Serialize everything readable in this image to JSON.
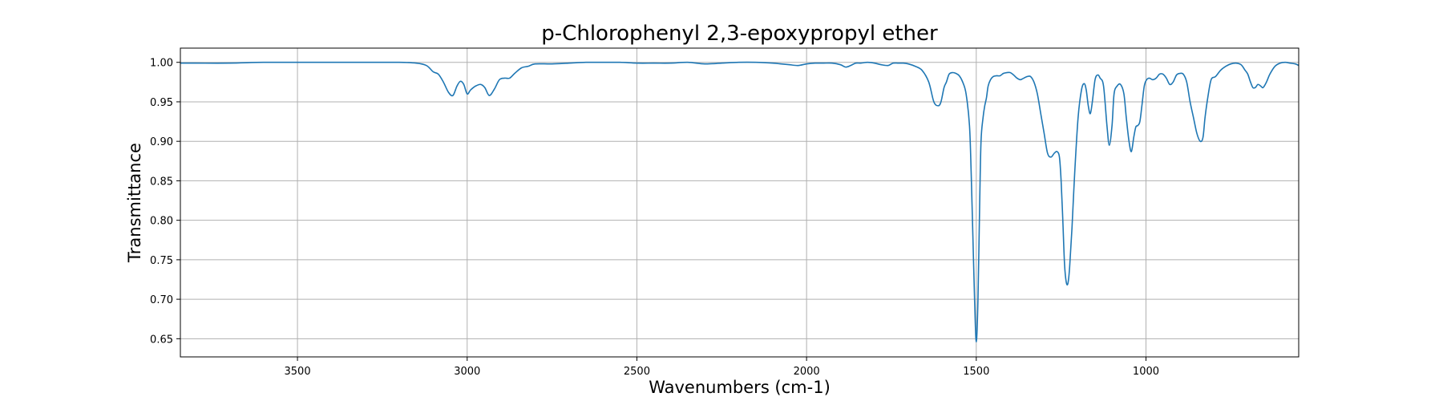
{
  "chart_data": {
    "type": "line",
    "title": "p-Chlorophenyl 2,3-epoxypropyl ether",
    "xlabel": "Wavenumbers (cm-1)",
    "ylabel": "Transmittance",
    "xlim": [
      3845,
      550
    ],
    "ylim": [
      0.627,
      1.018
    ],
    "x_reversed": true,
    "grid": true,
    "x_ticks": [
      3500,
      3000,
      2500,
      2000,
      1500,
      1000
    ],
    "x_tick_labels": [
      "3500",
      "3000",
      "2500",
      "2000",
      "1500",
      "1000"
    ],
    "y_ticks": [
      0.65,
      0.7,
      0.75,
      0.8,
      0.85,
      0.9,
      0.95,
      1.0
    ],
    "y_tick_labels": [
      "0.65",
      "0.70",
      "0.75",
      "0.80",
      "0.85",
      "0.90",
      "0.95",
      "1.00"
    ],
    "line_color": "#1f77b4",
    "series": [
      {
        "x": [
          3845,
          3800,
          3700,
          3600,
          3500,
          3400,
          3300,
          3200,
          3150,
          3120,
          3100,
          3085,
          3070,
          3055,
          3042,
          3030,
          3020,
          3010,
          3000,
          2990,
          2975,
          2960,
          2948,
          2935,
          2920,
          2905,
          2890,
          2875,
          2860,
          2840,
          2820,
          2800,
          2750,
          2700,
          2650,
          2600,
          2550,
          2500,
          2450,
          2400,
          2350,
          2300,
          2250,
          2200,
          2150,
          2100,
          2075,
          2050,
          2025,
          2000,
          1975,
          1950,
          1925,
          1900,
          1885,
          1870,
          1855,
          1840,
          1820,
          1800,
          1780,
          1760,
          1745,
          1730,
          1715,
          1700,
          1680,
          1660,
          1640,
          1625,
          1612,
          1604,
          1595,
          1588,
          1580,
          1570,
          1560,
          1550,
          1540,
          1530,
          1520,
          1515,
          1510,
          1505,
          1500,
          1495,
          1490,
          1486,
          1480,
          1475,
          1470,
          1465,
          1458,
          1450,
          1440,
          1430,
          1420,
          1410,
          1400,
          1390,
          1380,
          1370,
          1360,
          1350,
          1340,
          1330,
          1320,
          1310,
          1300,
          1290,
          1280,
          1270,
          1262,
          1255,
          1250,
          1245,
          1240,
          1235,
          1230,
          1225,
          1218,
          1210,
          1200,
          1190,
          1182,
          1176,
          1170,
          1164,
          1158,
          1150,
          1142,
          1135,
          1125,
          1115,
          1108,
          1100,
          1094,
          1085,
          1075,
          1065,
          1058,
          1050,
          1043,
          1036,
          1030,
          1024,
          1018,
          1012,
          1005,
          998,
          990,
          980,
          970,
          960,
          950,
          940,
          930,
          920,
          910,
          900,
          890,
          880,
          870,
          860,
          850,
          840,
          832,
          826,
          818,
          808,
          795,
          780,
          765,
          750,
          735,
          720,
          708,
          700,
          692,
          685,
          678,
          670,
          662,
          655,
          645,
          635,
          620,
          605,
          590,
          575,
          560,
          550
        ],
        "y": [
          0.999,
          0.999,
          0.999,
          1.0,
          1.0,
          1.0,
          1.0,
          1.0,
          0.999,
          0.996,
          0.988,
          0.985,
          0.975,
          0.962,
          0.958,
          0.97,
          0.976,
          0.972,
          0.96,
          0.965,
          0.97,
          0.972,
          0.968,
          0.958,
          0.966,
          0.978,
          0.98,
          0.98,
          0.986,
          0.993,
          0.995,
          0.998,
          0.998,
          0.999,
          1.0,
          1.0,
          1.0,
          0.999,
          0.999,
          0.999,
          1.0,
          0.998,
          0.999,
          1.0,
          1.0,
          0.999,
          0.998,
          0.997,
          0.996,
          0.998,
          0.999,
          0.999,
          0.999,
          0.997,
          0.994,
          0.996,
          0.999,
          0.999,
          1.0,
          0.999,
          0.997,
          0.996,
          0.999,
          0.999,
          0.999,
          0.998,
          0.995,
          0.99,
          0.975,
          0.95,
          0.945,
          0.95,
          0.968,
          0.975,
          0.985,
          0.987,
          0.986,
          0.983,
          0.975,
          0.96,
          0.92,
          0.86,
          0.78,
          0.7,
          0.646,
          0.7,
          0.82,
          0.9,
          0.93,
          0.945,
          0.955,
          0.97,
          0.978,
          0.982,
          0.983,
          0.983,
          0.986,
          0.987,
          0.987,
          0.984,
          0.98,
          0.978,
          0.98,
          0.982,
          0.982,
          0.975,
          0.96,
          0.935,
          0.91,
          0.885,
          0.88,
          0.885,
          0.887,
          0.88,
          0.85,
          0.8,
          0.745,
          0.722,
          0.72,
          0.74,
          0.79,
          0.86,
          0.93,
          0.965,
          0.973,
          0.965,
          0.945,
          0.935,
          0.95,
          0.978,
          0.984,
          0.98,
          0.97,
          0.92,
          0.895,
          0.92,
          0.96,
          0.97,
          0.972,
          0.96,
          0.93,
          0.9,
          0.887,
          0.905,
          0.918,
          0.92,
          0.925,
          0.945,
          0.97,
          0.978,
          0.98,
          0.978,
          0.98,
          0.985,
          0.985,
          0.98,
          0.972,
          0.975,
          0.984,
          0.986,
          0.985,
          0.975,
          0.95,
          0.93,
          0.91,
          0.9,
          0.905,
          0.93,
          0.955,
          0.978,
          0.982,
          0.99,
          0.995,
          0.998,
          0.999,
          0.997,
          0.99,
          0.985,
          0.975,
          0.968,
          0.968,
          0.972,
          0.97,
          0.968,
          0.975,
          0.985,
          0.995,
          0.999,
          1.0,
          0.999,
          0.998,
          0.996
        ]
      }
    ]
  }
}
